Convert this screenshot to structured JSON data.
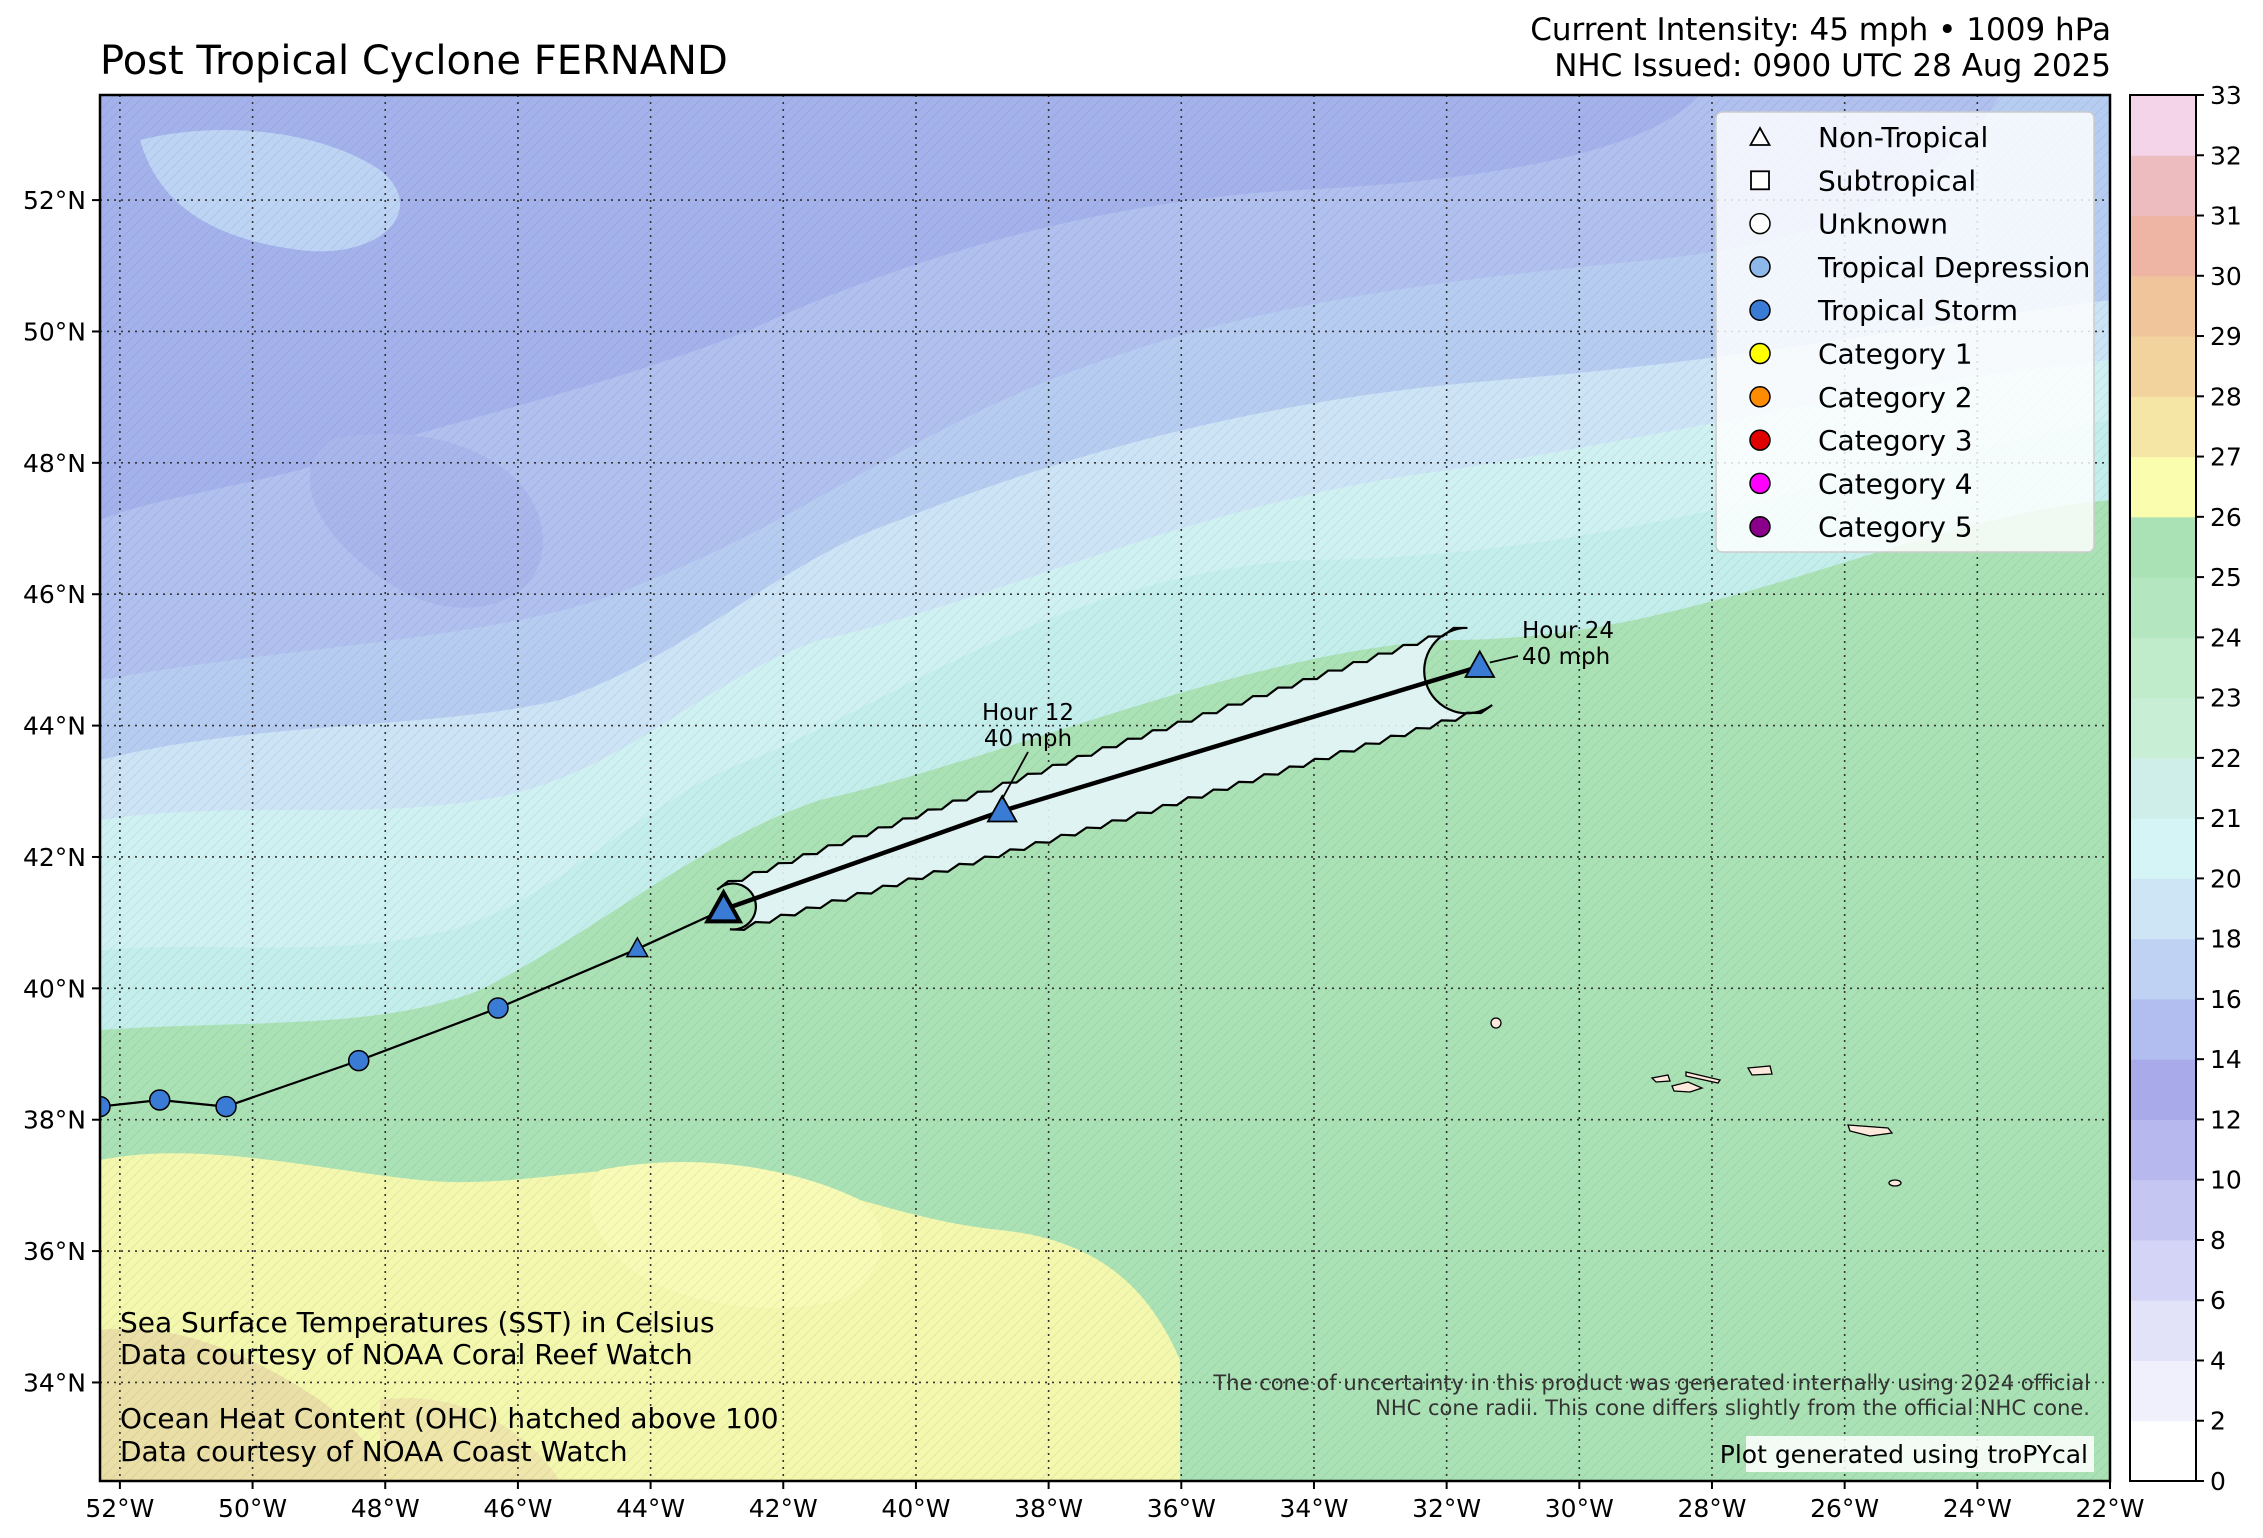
{
  "header": {
    "title": "Post Tropical Cyclone FERNAND",
    "intensity": "Current Intensity: 45 mph • 1009 hPa",
    "issued": "NHC Issued: 0900 UTC 28 Aug 2025"
  },
  "map": {
    "lon_range": [
      -52.3,
      -22
    ],
    "lat_range": [
      32.5,
      53.6
    ],
    "grid_lons": [
      -52,
      -50,
      -48,
      -46,
      -44,
      -42,
      -40,
      -38,
      -36,
      -34,
      -32,
      -30,
      -28,
      -26,
      -24,
      -22
    ],
    "grid_lats": [
      34,
      36,
      38,
      40,
      42,
      44,
      46,
      48,
      50,
      52
    ],
    "lon_labels": [
      "52°W",
      "50°W",
      "48°W",
      "46°W",
      "44°W",
      "42°W",
      "40°W",
      "38°W",
      "36°W",
      "34°W",
      "32°W",
      "30°W",
      "28°W",
      "26°W",
      "24°W",
      "22°W"
    ],
    "lat_labels": [
      "34°N",
      "36°N",
      "38°N",
      "40°N",
      "42°N",
      "44°N",
      "46°N",
      "48°N",
      "50°N",
      "52°N"
    ],
    "gridlines": true
  },
  "chart_data": {
    "type": "scatter",
    "past_track": [
      {
        "lon": -52.3,
        "lat": 38.2,
        "marker": "circle",
        "category": "Tropical Storm"
      },
      {
        "lon": -51.4,
        "lat": 38.3,
        "marker": "circle",
        "category": "Tropical Storm"
      },
      {
        "lon": -50.4,
        "lat": 38.2,
        "marker": "circle",
        "category": "Tropical Storm"
      },
      {
        "lon": -48.4,
        "lat": 38.9,
        "marker": "circle",
        "category": "Tropical Storm"
      },
      {
        "lon": -46.3,
        "lat": 39.7,
        "marker": "circle",
        "category": "Tropical Storm"
      },
      {
        "lon": -44.2,
        "lat": 40.6,
        "marker": "triangle",
        "category": "Tropical Storm"
      }
    ],
    "current_position": {
      "lon": -42.9,
      "lat": 41.2,
      "marker": "triangle"
    },
    "forecast": [
      {
        "lon": -38.7,
        "lat": 42.7,
        "label_hour": "Hour 12",
        "label_wind": "40 mph"
      },
      {
        "lon": -31.5,
        "lat": 44.9,
        "label_hour": "Hour 24",
        "label_wind": "40 mph"
      }
    ],
    "cone_radii_deg": [
      0.35,
      0.55,
      0.65
    ]
  },
  "legend": {
    "items": [
      {
        "label": "Non-Tropical",
        "shape": "triangle",
        "color": "#ffffff"
      },
      {
        "label": "Subtropical",
        "shape": "square",
        "color": "#ffffff"
      },
      {
        "label": "Unknown",
        "shape": "circle",
        "color": "#ffffff"
      },
      {
        "label": "Tropical Depression",
        "shape": "circle",
        "color": "#8fb8ea"
      },
      {
        "label": "Tropical Storm",
        "shape": "circle",
        "color": "#3a7bd5"
      },
      {
        "label": "Category 1",
        "shape": "circle",
        "color": "#ffff00"
      },
      {
        "label": "Category 2",
        "shape": "circle",
        "color": "#ff8c00"
      },
      {
        "label": "Category 3",
        "shape": "circle",
        "color": "#e00000"
      },
      {
        "label": "Category 4",
        "shape": "circle",
        "color": "#ff00ff"
      },
      {
        "label": "Category 5",
        "shape": "circle",
        "color": "#8b008b"
      }
    ]
  },
  "colorbar": {
    "ticks": [
      "0",
      "2",
      "4",
      "6",
      "8",
      "10",
      "12",
      "14",
      "16",
      "18",
      "20",
      "21",
      "22",
      "23",
      "24",
      "25",
      "26",
      "27",
      "28",
      "29",
      "30",
      "31",
      "32",
      "33"
    ],
    "colors": [
      "#ffffff",
      "#f0f0fc",
      "#e2e2f8",
      "#d4d4f6",
      "#c6c6f2",
      "#b7b8ee",
      "#a8aaea",
      "#b2bdf0",
      "#c0d2f4",
      "#cde5f5",
      "#d4f4f5",
      "#cfeee9",
      "#c8efd6",
      "#c0eccb",
      "#b4e7bf",
      "#aae2b5",
      "#fafcae",
      "#f5e6a6",
      "#f2d39e",
      "#f0c59b",
      "#eeb5a4",
      "#ecbcbf",
      "#f4d4e8"
    ]
  },
  "notes": {
    "sst_line1": "Sea Surface Temperatures (SST) in Celsius",
    "sst_line2": "Data courtesy of NOAA Coral Reef Watch",
    "ohc_line1": "Ocean Heat Content (OHC) hatched above 100",
    "ohc_line2": "Data courtesy of NOAA Coast Watch",
    "cone_line1": "The cone of uncertainty in this product was generated internally using 2024 official",
    "cone_line2": "NHC cone radii. This cone differs slightly from the official NHC cone.",
    "credit": "Plot generated using troPYcal"
  },
  "colors": {
    "marker_blue": "#3a7bd5"
  }
}
